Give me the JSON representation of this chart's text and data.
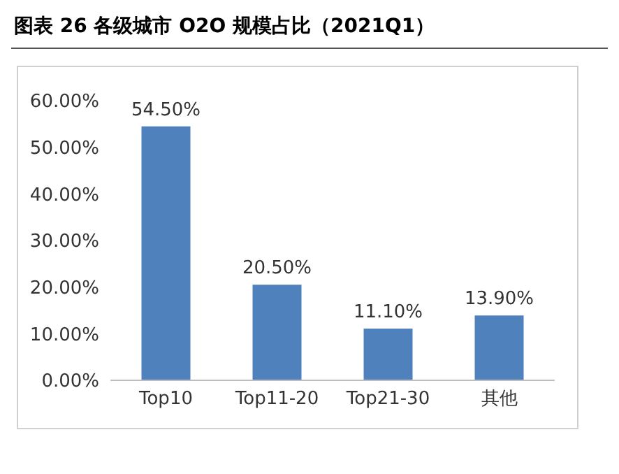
{
  "chart_data": {
    "type": "bar",
    "title": "图表 26 各级城市 O2O 规模占比（2021Q1）",
    "categories": [
      "Top10",
      "Top11-20",
      "Top21-30",
      "其他"
    ],
    "values": [
      54.5,
      20.5,
      11.1,
      13.9
    ],
    "value_labels": [
      "54.50%",
      "20.50%",
      "11.10%",
      "13.90%"
    ],
    "color": "#4f81bd",
    "ylim": [
      0,
      60
    ],
    "yticks": [
      {
        "value": 0,
        "label": "0.00%"
      },
      {
        "value": 10,
        "label": "10.00%"
      },
      {
        "value": 20,
        "label": "20.00%"
      },
      {
        "value": 30,
        "label": "30.00%"
      },
      {
        "value": 40,
        "label": "40.00%"
      },
      {
        "value": 50,
        "label": "50.00%"
      },
      {
        "value": 60,
        "label": "60.00%"
      }
    ],
    "grid": false,
    "legend": false
  }
}
